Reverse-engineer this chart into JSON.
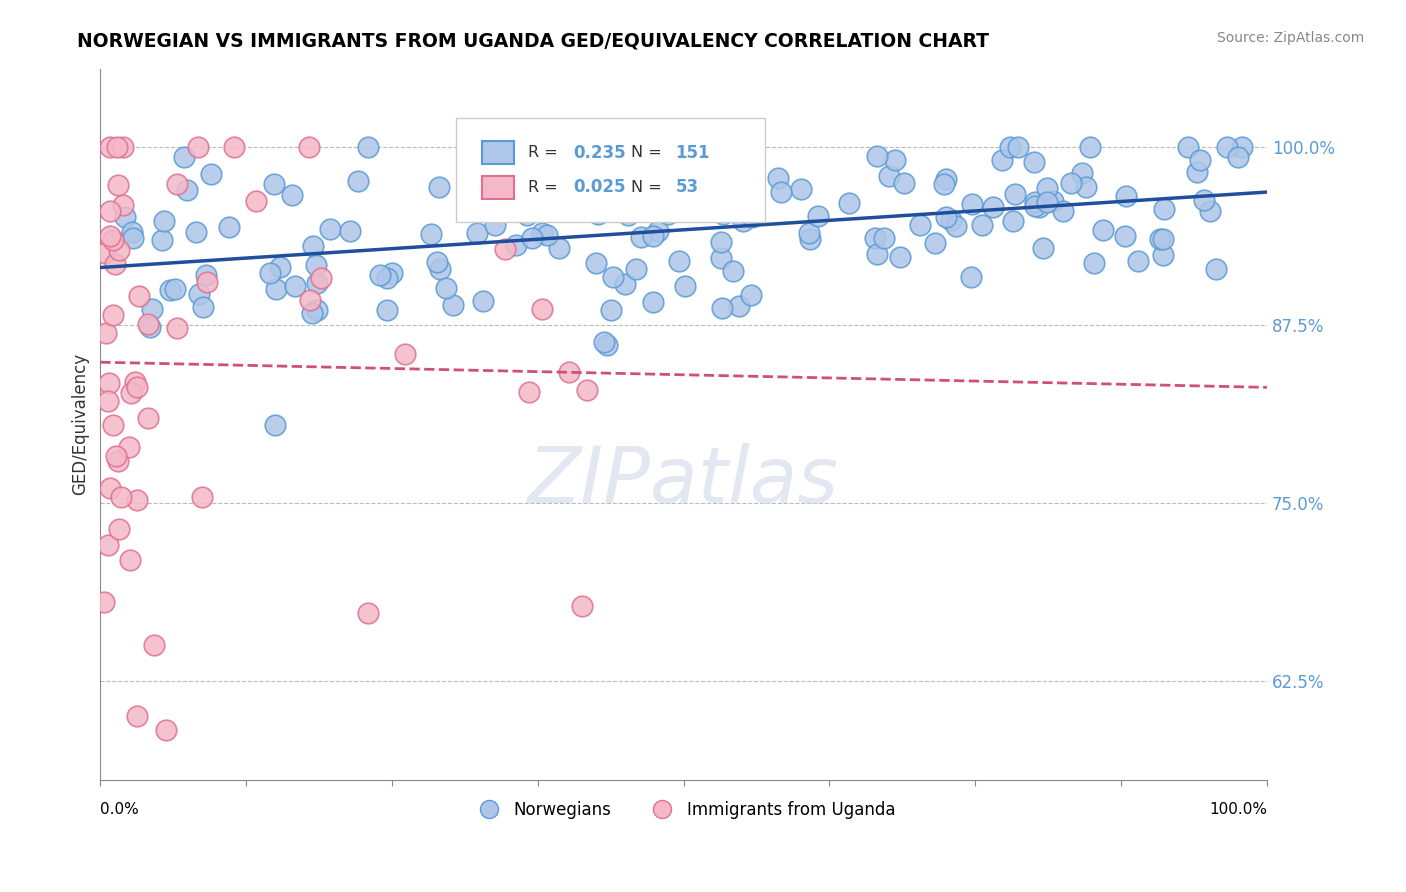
{
  "title": "NORWEGIAN VS IMMIGRANTS FROM UGANDA GED/EQUIVALENCY CORRELATION CHART",
  "source": "Source: ZipAtlas.com",
  "ylabel": "GED/Equivalency",
  "yticks": [
    0.625,
    0.75,
    0.875,
    1.0
  ],
  "ytick_labels": [
    "62.5%",
    "75.0%",
    "87.5%",
    "100.0%"
  ],
  "xmin": 0.0,
  "xmax": 1.0,
  "ymin": 0.555,
  "ymax": 1.055,
  "blue_R": 0.235,
  "blue_N": 151,
  "pink_R": 0.025,
  "pink_N": 53,
  "blue_color": "#aec6e8",
  "blue_edge": "#5b9bd5",
  "pink_color": "#f4b8c8",
  "pink_edge": "#e07090",
  "blue_line_color": "#1f4e9c",
  "pink_line_color": "#d05070",
  "legend_label_blue": "Norwegians",
  "legend_label_pink": "Immigrants from Uganda",
  "watermark": "ZIPatlas"
}
